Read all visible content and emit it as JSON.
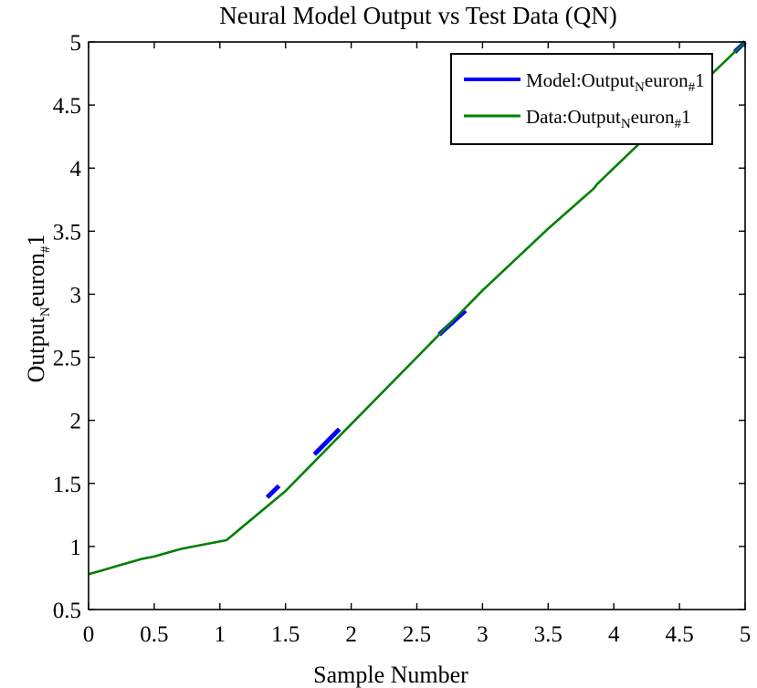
{
  "chart_data": {
    "type": "line",
    "title": "Neural Model Output vs Test Data (QN)",
    "xlabel": "Sample Number",
    "ylabel": {
      "main": "Output",
      "sub1": "N",
      "mid": "euron",
      "sub2": "#",
      "tail": "1"
    },
    "xlim": [
      0,
      5
    ],
    "ylim": [
      0.5,
      5
    ],
    "xticks": [
      0,
      0.5,
      1,
      1.5,
      2,
      2.5,
      3,
      3.5,
      4,
      4.5,
      5
    ],
    "yticks": [
      0.5,
      1,
      1.5,
      2,
      2.5,
      3,
      3.5,
      4,
      4.5,
      5
    ],
    "xtick_labels": [
      "0",
      "0.5",
      "1",
      "1.5",
      "2",
      "2.5",
      "3",
      "3.5",
      "4",
      "4.5",
      "5"
    ],
    "ytick_labels": [
      "0.5",
      "1",
      "1.5",
      "2",
      "2.5",
      "3",
      "3.5",
      "4",
      "4.5",
      "5"
    ],
    "grid": false,
    "legend_position": "top-right",
    "series": [
      {
        "name": {
          "main": "Model:Output",
          "sub1": "N",
          "mid": "euron",
          "sub2": "#",
          "tail": "1"
        },
        "color": "#0000ff",
        "segments": [
          [
            [
              1.36,
              1.39
            ],
            [
              1.45,
              1.48
            ]
          ],
          [
            [
              1.72,
              1.73
            ],
            [
              1.91,
              1.93
            ]
          ],
          [
            [
              2.67,
              2.68
            ],
            [
              2.87,
              2.87
            ]
          ],
          [
            [
              4.92,
              4.92
            ],
            [
              5.0,
              5.0
            ]
          ]
        ]
      },
      {
        "name": {
          "main": "Data:Output",
          "sub1": "N",
          "mid": "euron",
          "sub2": "#",
          "tail": "1"
        },
        "color": "#008000",
        "x": [
          0,
          0.1,
          0.2,
          0.3,
          0.4,
          0.5,
          0.6,
          0.7,
          0.8,
          0.9,
          1.0,
          1.05,
          1.5,
          2.0,
          2.5,
          3.0,
          3.5,
          3.85,
          3.87,
          4.0,
          4.5,
          5.0
        ],
        "y": [
          0.78,
          0.81,
          0.84,
          0.87,
          0.9,
          0.92,
          0.95,
          0.98,
          1.0,
          1.02,
          1.04,
          1.05,
          1.44,
          1.97,
          2.5,
          3.03,
          3.52,
          3.84,
          3.87,
          4.0,
          4.5,
          5.0
        ]
      }
    ]
  }
}
